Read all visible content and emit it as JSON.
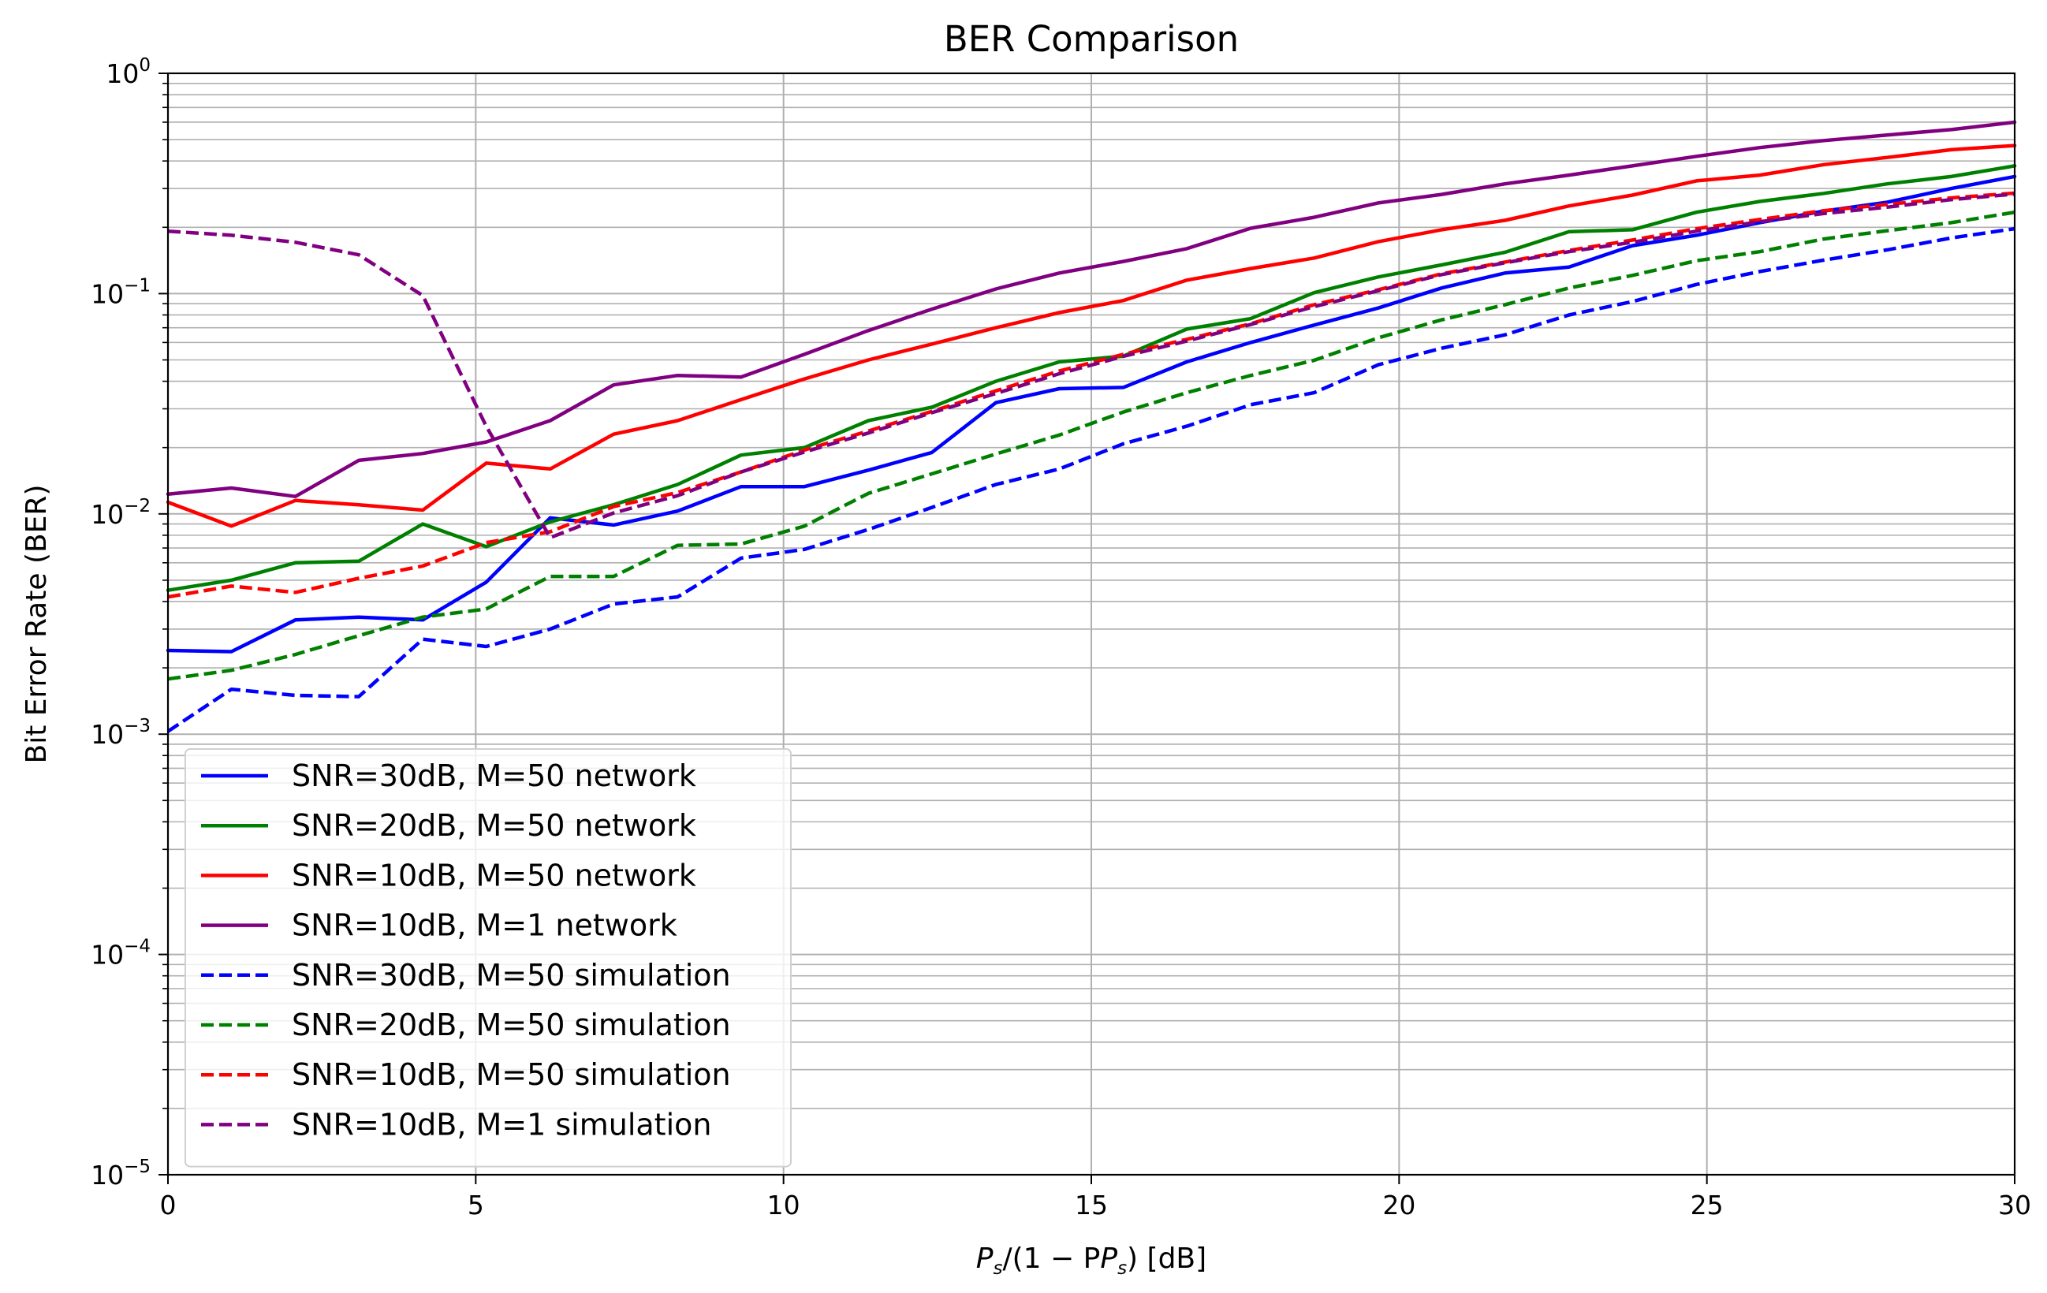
{
  "chart_data": {
    "type": "line",
    "title": "BER Comparison",
    "xlabel": {
      "base": "P",
      "sub": "s",
      "mid": "/(1 − P",
      "sub2": "s",
      "tail": ") [dB]"
    },
    "ylabel": "Bit Error Rate (BER)",
    "xlim": [
      0,
      30
    ],
    "ylim": [
      1e-05,
      1
    ],
    "yscale": "log",
    "grid": true,
    "legend_position": "lower-left",
    "x_ticks": [
      "0",
      "5",
      "10",
      "15",
      "20",
      "25",
      "30"
    ],
    "y_ticks": [
      {
        "base": "10",
        "exp": "0"
      },
      {
        "base": "10",
        "exp": "−1"
      },
      {
        "base": "10",
        "exp": "−2"
      },
      {
        "base": "10",
        "exp": "−3"
      },
      {
        "base": "10",
        "exp": "−4"
      },
      {
        "base": "10",
        "exp": "−5"
      }
    ],
    "x": [
      0,
      1.03,
      2.07,
      3.1,
      4.14,
      5.17,
      6.21,
      7.24,
      8.28,
      9.31,
      10.34,
      11.38,
      12.41,
      13.45,
      14.48,
      15.52,
      16.55,
      17.59,
      18.62,
      19.66,
      20.69,
      21.72,
      22.76,
      23.79,
      24.83,
      25.86,
      26.9,
      27.93,
      28.97,
      30
    ],
    "series": [
      {
        "name": "SNR=30dB, M=50 network",
        "color": "#0000ff",
        "style": "solid",
        "values": [
          0.0024,
          0.00237,
          0.0033,
          0.0034,
          0.0033,
          0.0049,
          0.0096,
          0.0089,
          0.0103,
          0.0133,
          0.0133,
          0.0158,
          0.019,
          0.032,
          0.037,
          0.0375,
          0.049,
          0.06,
          0.072,
          0.086,
          0.106,
          0.124,
          0.132,
          0.165,
          0.184,
          0.21,
          0.237,
          0.26,
          0.3,
          0.34
        ]
      },
      {
        "name": "SNR=20dB, M=50 network",
        "color": "#008000",
        "style": "solid",
        "values": [
          0.0045,
          0.005,
          0.006,
          0.0061,
          0.009,
          0.0071,
          0.0092,
          0.011,
          0.0136,
          0.0185,
          0.02,
          0.0265,
          0.0305,
          0.04,
          0.049,
          0.052,
          0.069,
          0.077,
          0.101,
          0.119,
          0.135,
          0.154,
          0.191,
          0.195,
          0.234,
          0.262,
          0.285,
          0.315,
          0.34,
          0.38
        ]
      },
      {
        "name": "SNR=10dB, M=50 network",
        "color": "#ff0000",
        "style": "solid",
        "values": [
          0.0113,
          0.0088,
          0.0115,
          0.011,
          0.0104,
          0.017,
          0.016,
          0.023,
          0.0265,
          0.033,
          0.041,
          0.05,
          0.059,
          0.07,
          0.082,
          0.093,
          0.115,
          0.13,
          0.145,
          0.172,
          0.195,
          0.215,
          0.25,
          0.28,
          0.325,
          0.345,
          0.385,
          0.415,
          0.45,
          0.47
        ]
      },
      {
        "name": "SNR=10dB, M=1 network",
        "color": "#800080",
        "style": "solid",
        "values": [
          0.0123,
          0.0131,
          0.012,
          0.0175,
          0.0188,
          0.0212,
          0.0265,
          0.0385,
          0.0425,
          0.0418,
          0.053,
          0.068,
          0.085,
          0.105,
          0.124,
          0.14,
          0.16,
          0.198,
          0.222,
          0.258,
          0.282,
          0.315,
          0.345,
          0.38,
          0.42,
          0.46,
          0.495,
          0.525,
          0.555,
          0.6
        ]
      },
      {
        "name": "SNR=30dB, M=50 simulation",
        "color": "#0000ff",
        "style": "dashed",
        "values": [
          0.00103,
          0.0016,
          0.0015,
          0.00148,
          0.0027,
          0.0025,
          0.003,
          0.0039,
          0.0042,
          0.0063,
          0.0069,
          0.0085,
          0.0107,
          0.0136,
          0.016,
          0.0208,
          0.025,
          0.0313,
          0.0355,
          0.0475,
          0.0565,
          0.065,
          0.08,
          0.092,
          0.11,
          0.126,
          0.142,
          0.158,
          0.179,
          0.197
        ]
      },
      {
        "name": "SNR=20dB, M=50 simulation",
        "color": "#008000",
        "style": "dashed",
        "values": [
          0.00178,
          0.00195,
          0.0023,
          0.0028,
          0.0034,
          0.0037,
          0.0052,
          0.0052,
          0.0072,
          0.0073,
          0.0088,
          0.0124,
          0.0152,
          0.0187,
          0.0228,
          0.029,
          0.0355,
          0.0425,
          0.0498,
          0.063,
          0.076,
          0.089,
          0.106,
          0.121,
          0.141,
          0.155,
          0.177,
          0.193,
          0.21,
          0.234
        ]
      },
      {
        "name": "SNR=10dB, M=50 simulation",
        "color": "#ff0000",
        "style": "dashed",
        "values": [
          0.0042,
          0.0047,
          0.0044,
          0.0051,
          0.0058,
          0.0074,
          0.0083,
          0.0108,
          0.0125,
          0.0155,
          0.0195,
          0.0238,
          0.0292,
          0.0362,
          0.0445,
          0.053,
          0.062,
          0.073,
          0.089,
          0.104,
          0.123,
          0.139,
          0.157,
          0.175,
          0.197,
          0.217,
          0.238,
          0.254,
          0.272,
          0.286
        ]
      },
      {
        "name": "SNR=10dB, M=1 simulation",
        "color": "#800080",
        "style": "dashed",
        "values": [
          0.192,
          0.184,
          0.171,
          0.15,
          0.098,
          0.025,
          0.0078,
          0.0101,
          0.0121,
          0.0155,
          0.0191,
          0.0233,
          0.0288,
          0.0352,
          0.0433,
          0.0519,
          0.0609,
          0.0724,
          0.0873,
          0.103,
          0.122,
          0.138,
          0.155,
          0.171,
          0.192,
          0.212,
          0.231,
          0.247,
          0.267,
          0.283
        ]
      }
    ]
  }
}
